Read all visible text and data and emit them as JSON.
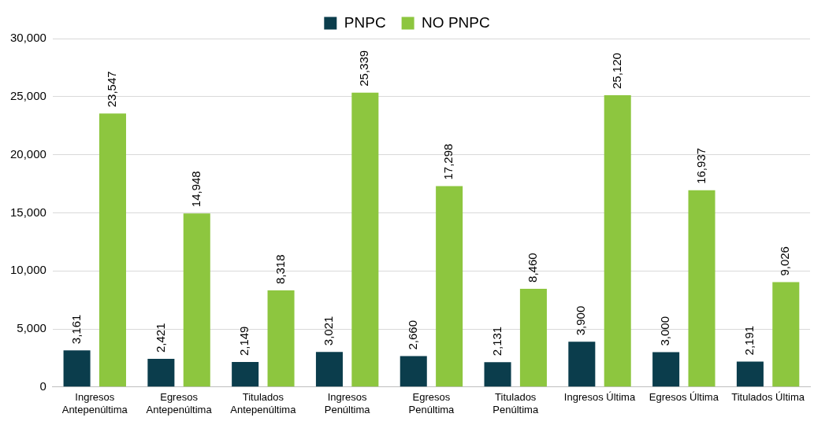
{
  "chart_data": {
    "type": "bar",
    "categories": [
      "Ingresos Antepenúltima",
      "Egresos Antepenúltima",
      "Titulados Antepenúltima",
      "Ingresos Penúltima",
      "Egresos Penúltima",
      "Titulados Penúltima",
      "Ingresos Última",
      "Egresos Última",
      "Titulados Última"
    ],
    "series": [
      {
        "name": "PNPC",
        "color": "#0b3d4c",
        "values": [
          3161,
          2421,
          2149,
          3021,
          2660,
          2131,
          3900,
          3000,
          2191
        ],
        "value_labels": [
          "3,161",
          "2,421",
          "2,149",
          "3,021",
          "2,660",
          "2,131",
          "3,900",
          "3,000",
          "2,191"
        ]
      },
      {
        "name": "NO PNPC",
        "color": "#8dc63f",
        "values": [
          23547,
          14948,
          8318,
          25339,
          17298,
          8460,
          25120,
          16937,
          9026
        ],
        "value_labels": [
          "23,547",
          "14,948",
          "8,318",
          "25,339",
          "17,298",
          "8,460",
          "25,120",
          "16,937",
          "9,026"
        ]
      }
    ],
    "ylim": [
      0,
      30000
    ],
    "yticks": [
      {
        "value": 0,
        "label": "0"
      },
      {
        "value": 5000,
        "label": "5,000"
      },
      {
        "value": 10000,
        "label": "10,000"
      },
      {
        "value": 15000,
        "label": "15,000"
      },
      {
        "value": 20000,
        "label": "20,000"
      },
      {
        "value": 25000,
        "label": "25,000"
      },
      {
        "value": 30000,
        "label": "30,000"
      }
    ],
    "grid": "y",
    "legend": "top"
  }
}
